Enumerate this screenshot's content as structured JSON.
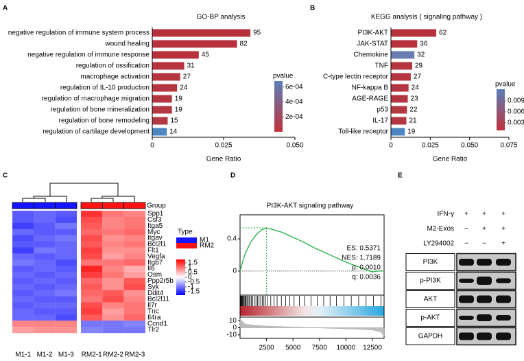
{
  "chart_data": [
    {
      "type": "hbar",
      "panel": "A",
      "title": "GO-BP analysis",
      "x_label": "Gene Ratio",
      "categories": [
        "negative regulation of immune system process",
        "wound healing",
        "negative regulation of immune response",
        "regulation of ossification",
        "macrophage activation",
        "regulation of IL-10 production",
        "regulation of macrophage migration",
        "regulation of bone mineralization",
        "regulation of bone remodeling",
        "regulation of cartilage development"
      ],
      "values": [
        0.0344,
        0.0297,
        0.0163,
        0.0112,
        0.0098,
        0.0087,
        0.0069,
        0.0069,
        0.0054,
        0.0051
      ],
      "counts": [
        95,
        82,
        45,
        31,
        27,
        24,
        19,
        19,
        15,
        14
      ],
      "colors": [
        "#b8313c",
        "#b8313c",
        "#b8323d",
        "#b7333e",
        "#b6343f",
        "#b43640",
        "#b33741",
        "#b33741",
        "#b23842",
        "#4b86c1"
      ],
      "xlim": [
        0,
        0.05
      ],
      "xticks": [
        0,
        0.025,
        {
          "value": 0.05,
          "label": "0.050"
        }
      ],
      "colorbar": {
        "title": "pvalue",
        "clim": [
          0,
          0.00068
        ],
        "colors": [
          "#c0313a",
          "#5a7fb8"
        ],
        "ticks": [
          {
            "value": 0.0006,
            "label": "6e-04"
          },
          {
            "value": 0.0004,
            "label": "4e-04"
          },
          {
            "value": 0.0002,
            "label": "2e-04"
          }
        ]
      }
    },
    {
      "type": "hbar",
      "panel": "B",
      "title": "KEGG analysis ( signaling pathway )",
      "x_label": "Gene Ratio",
      "categories": [
        "PI3K-AKT",
        "JAK-STAT",
        "Chemokine",
        "TNF",
        "C-type lectin receptor",
        "NF-kappa B",
        "AGE-RAGE",
        "p53",
        "IL-17",
        "Toll-like receptor"
      ],
      "values": [
        0.0288,
        0.0167,
        0.0149,
        0.0135,
        0.0126,
        0.0112,
        0.0107,
        0.0102,
        0.0098,
        0.0088
      ],
      "counts": [
        62,
        36,
        32,
        29,
        27,
        24,
        23,
        22,
        21,
        19
      ],
      "colors": [
        "#b8313c",
        "#b8323d",
        "#6a7db3",
        "#b7333e",
        "#b6343f",
        "#b43640",
        "#b43640",
        "#b33741",
        "#b33741",
        "#4b86c1"
      ],
      "xlim": [
        0,
        0.075
      ],
      "xticks": [
        0,
        0.025,
        {
          "value": 0.05,
          "label": "0.050"
        },
        0.075
      ],
      "colorbar": {
        "title": "pvalue",
        "clim": [
          0.0009,
          0.0122
        ],
        "colors": [
          "#c0313a",
          "#5a7fb8"
        ],
        "ticks": [
          0.009,
          0.006,
          0.003
        ]
      }
    },
    {
      "type": "heatmap",
      "panel": "C",
      "group_title": "Group",
      "columns": [
        "M1-1",
        "M1-2",
        "M1-3",
        "RM2-1",
        "RM2-2",
        "RM2-3"
      ],
      "column_colors": [
        "#1414ff",
        "#1414ff",
        "#1414ff",
        "#ff1414",
        "#ff1414",
        "#ff1414"
      ],
      "rows": [
        "Spp1",
        "Csf3",
        "Itga5",
        "Myc",
        "Itgav",
        "Bcl2l1",
        "Flt1",
        "Vegfa",
        "Itgb7",
        "Il6",
        "Osm",
        "Ppp2r5b",
        "Syk",
        "Ddit4",
        "Bcl2l11",
        "Il7r",
        "Tnc",
        "Il4ra",
        "Ccnd1",
        "Tlr2"
      ],
      "values": [
        [
          -1.2,
          -1.1,
          -1.2,
          1.5,
          1.0,
          0.9
        ],
        [
          -1.2,
          -1.1,
          -1.3,
          1.3,
          0.9,
          1.0
        ],
        [
          -1.4,
          -1.2,
          -1.0,
          1.2,
          0.9,
          1.0
        ],
        [
          -1.1,
          -1.2,
          -1.2,
          1.1,
          1.0,
          1.1
        ],
        [
          -1.3,
          -1.1,
          -1.0,
          1.3,
          0.8,
          0.9
        ],
        [
          -1.2,
          -1.2,
          -1.1,
          1.2,
          0.9,
          1.0
        ],
        [
          -1.4,
          -1.0,
          -1.1,
          1.4,
          0.8,
          0.8
        ],
        [
          -1.1,
          -1.2,
          -1.1,
          1.3,
          0.7,
          0.9
        ],
        [
          -1.0,
          -1.1,
          -1.3,
          1.0,
          1.0,
          1.1
        ],
        [
          -1.2,
          -1.1,
          -1.2,
          1.6,
          0.9,
          0.6
        ],
        [
          -1.1,
          -1.2,
          -1.1,
          1.4,
          1.0,
          0.7
        ],
        [
          -1.2,
          -1.1,
          -1.2,
          1.1,
          0.8,
          1.2
        ],
        [
          -1.1,
          -1.2,
          -1.1,
          1.2,
          0.8,
          1.3
        ],
        [
          -1.2,
          -1.1,
          -1.0,
          1.1,
          1.2,
          0.8
        ],
        [
          -1.1,
          -1.2,
          -1.2,
          1.0,
          1.3,
          0.9
        ],
        [
          -1.2,
          -1.1,
          -1.1,
          1.3,
          0.9,
          1.0
        ],
        [
          -1.1,
          -1.2,
          -1.2,
          1.4,
          0.7,
          1.0
        ],
        [
          -1.1,
          -1.1,
          -1.3,
          1.2,
          0.8,
          1.1
        ],
        [
          0.9,
          0.9,
          0.9,
          -1.0,
          -1.0,
          -0.9
        ],
        [
          0.7,
          0.8,
          0.8,
          -0.9,
          -1.0,
          -1.0
        ]
      ],
      "legend": {
        "title": "Type",
        "groups": [
          {
            "name": "M1",
            "color": "#1414ff"
          },
          {
            "name": "RM2",
            "color": "#ff1414"
          }
        ]
      },
      "colorbar": {
        "clim": [
          -1.86,
          1.86
        ],
        "colors": [
          "#0000ff",
          "#ffffff",
          "#ff0000"
        ],
        "ticks": [
          1.5,
          1,
          0.5,
          0,
          -0.5,
          -1,
          -1.5
        ]
      }
    },
    {
      "type": "gsea",
      "panel": "D",
      "title": "PI3K-AKT signaling pathway",
      "color": "#2db34a",
      "x": [
        0,
        250,
        500,
        1000,
        1500,
        2000,
        2500,
        3000,
        4000,
        5000,
        6000,
        7000,
        8000,
        9000,
        10000,
        11000,
        12000,
        12500,
        13000,
        13500
      ],
      "y": [
        0,
        0.12,
        0.22,
        0.36,
        0.45,
        0.51,
        0.5371,
        0.52,
        0.48,
        0.42,
        0.36,
        0.29,
        0.23,
        0.17,
        0.11,
        0.06,
        0.01,
        -0.01,
        0.0,
        0.0
      ],
      "xlim": [
        0,
        13600
      ],
      "ylim": [
        -0.3,
        0.7
      ],
      "xticks": [
        2500,
        5000,
        7500,
        10000,
        12500
      ],
      "yticks": [
        0,
        0.4
      ],
      "stats": [
        "ES: 0.5371",
        "NES: 1.7189",
        "p: 0.0010",
        "q: 0.0036"
      ],
      "hits": [
        20,
        60,
        110,
        150,
        200,
        260,
        320,
        400,
        480,
        560,
        650,
        750,
        850,
        950,
        1080,
        1200,
        1350,
        1500,
        1650,
        1800,
        1950,
        2100,
        2250,
        2400,
        2600,
        2900,
        3200,
        3500,
        3900,
        4300,
        4700,
        5100,
        5600,
        6100,
        6700,
        7300,
        7900,
        8500,
        9100,
        9800,
        10500,
        11200,
        11900,
        12600,
        13300
      ],
      "metric": {
        "x": [
          0,
          500,
          1500,
          3000,
          5000,
          7000,
          9000,
          11000,
          12500,
          13300,
          13600
        ],
        "y": [
          12,
          5,
          3,
          2,
          1,
          0,
          -1,
          -2,
          -3,
          -6,
          -12
        ],
        "ylim": [
          -15,
          15
        ],
        "yticks": [
          10,
          0,
          -10
        ]
      }
    },
    {
      "type": "blot",
      "panel": "E",
      "conditions": [
        {
          "name": "IFN-γ",
          "signs": [
            "+",
            "+",
            "+"
          ]
        },
        {
          "name": "M2-Exos",
          "signs": [
            "−",
            "+",
            "+"
          ]
        },
        {
          "name": "LY294002",
          "signs": [
            "−",
            "−",
            "+"
          ]
        }
      ],
      "bands": [
        "PI3K",
        "p-PI3K",
        "AKT",
        "p-AKT",
        "GAPDH"
      ]
    }
  ]
}
